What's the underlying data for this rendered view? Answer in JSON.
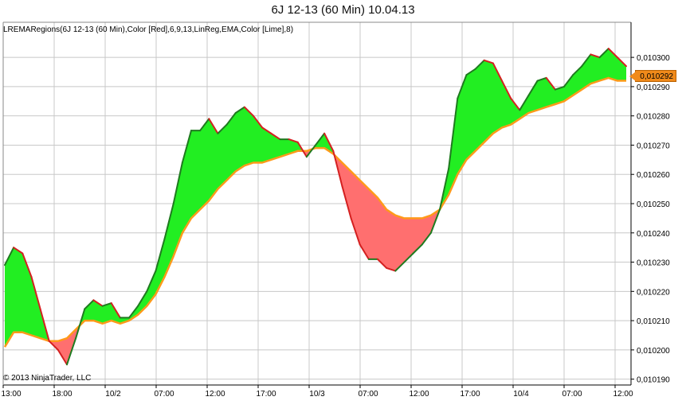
{
  "title": "6J 12-13 (60 Min)  10.04.13",
  "indicator_label": "LREMARegions(6J 12-13 (60 Min),Color [Red],6,9,13,LinReg,EMA,Color [Lime],8)",
  "copyright": "© 2013 NinjaTrader, LLC",
  "last_price_label": "0,010292",
  "colors": {
    "bull_fill": "#22ee22",
    "bear_fill": "#ff6f6f",
    "linreg_up": "#1f7a1f",
    "linreg_down": "#d42020",
    "ema": "#ff9a1a",
    "grid": "#c8c8c8"
  },
  "chart_data": {
    "type": "area",
    "ylim": [
      0.010188,
      0.010312
    ],
    "y_ticks": [
      "0,010190",
      "0,010200",
      "0,010210",
      "0,010220",
      "0,010230",
      "0,010240",
      "0,010250",
      "0,010260",
      "0,010270",
      "0,010280",
      "0,010290",
      "0,010300"
    ],
    "x_ticks": [
      "13:00",
      "18:00",
      "10/2",
      "07:00",
      "12:00",
      "17:00",
      "10/3",
      "07:00",
      "12:00",
      "17:00",
      "10/4",
      "07:00",
      "12:00"
    ],
    "series": [
      {
        "values": [
          0.010229,
          0.010235,
          0.010233,
          0.010225,
          0.010214,
          0.010203,
          0.0102,
          0.010195,
          0.010204,
          0.010214,
          0.010217,
          0.010215,
          0.010216,
          0.010211,
          0.010211,
          0.010215,
          0.01022,
          0.010227,
          0.010238,
          0.01025,
          0.010264,
          0.010275,
          0.010275,
          0.010279,
          0.010274,
          0.010277,
          0.010281,
          0.010283,
          0.01028,
          0.010276,
          0.010274,
          0.010272,
          0.010272,
          0.010271,
          0.010266,
          0.01027,
          0.010274,
          0.010268,
          0.010256,
          0.010245,
          0.010236,
          0.010231,
          0.010231,
          0.010228,
          0.010227,
          0.01023,
          0.010233,
          0.010236,
          0.01024,
          0.010248,
          0.010262,
          0.010286,
          0.010294,
          0.010296,
          0.010299,
          0.010298,
          0.010292,
          0.010286,
          0.010282,
          0.010287,
          0.010292,
          0.010293,
          0.010289,
          0.01029,
          0.010294,
          0.010297,
          0.010301,
          0.0103,
          0.010303,
          0.0103,
          0.010297
        ]
      },
      {
        "values": [
          0.010201,
          0.010206,
          0.010206,
          0.010205,
          0.010204,
          0.010203,
          0.010203,
          0.010204,
          0.010207,
          0.01021,
          0.01021,
          0.010209,
          0.01021,
          0.010209,
          0.01021,
          0.010212,
          0.010215,
          0.010219,
          0.010225,
          0.010232,
          0.01024,
          0.010245,
          0.010248,
          0.010251,
          0.010255,
          0.010258,
          0.010261,
          0.010263,
          0.010264,
          0.010264,
          0.010265,
          0.010266,
          0.010267,
          0.010268,
          0.010268,
          0.010269,
          0.010269,
          0.010267,
          0.010264,
          0.010261,
          0.010258,
          0.010255,
          0.010252,
          0.010248,
          0.010246,
          0.010245,
          0.010245,
          0.010245,
          0.010246,
          0.010248,
          0.010253,
          0.01026,
          0.010265,
          0.010268,
          0.010271,
          0.010274,
          0.010276,
          0.010277,
          0.010279,
          0.010281,
          0.010282,
          0.010283,
          0.010284,
          0.010285,
          0.010287,
          0.010289,
          0.010291,
          0.010292,
          0.010293,
          0.010292,
          0.010292
        ]
      }
    ]
  }
}
